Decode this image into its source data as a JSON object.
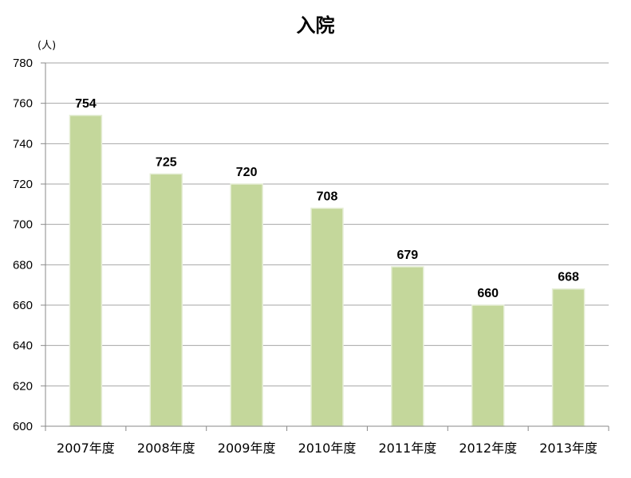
{
  "chart_data": {
    "type": "bar",
    "title": "入院",
    "ylabel": "(人)",
    "xlabel": "",
    "categories": [
      "2007年度",
      "2008年度",
      "2009年度",
      "2010年度",
      "2011年度",
      "2012年度",
      "2013年度"
    ],
    "values": [
      754,
      725,
      720,
      708,
      679,
      660,
      668
    ],
    "ylim": [
      600,
      780
    ],
    "yticks": [
      600,
      620,
      640,
      660,
      680,
      700,
      720,
      740,
      760,
      780
    ],
    "grid": true,
    "legend": "none",
    "bar_color": "#c4d79b",
    "bar_edge_color": "#e6eed6",
    "grid_color": "#a6a6a6"
  }
}
